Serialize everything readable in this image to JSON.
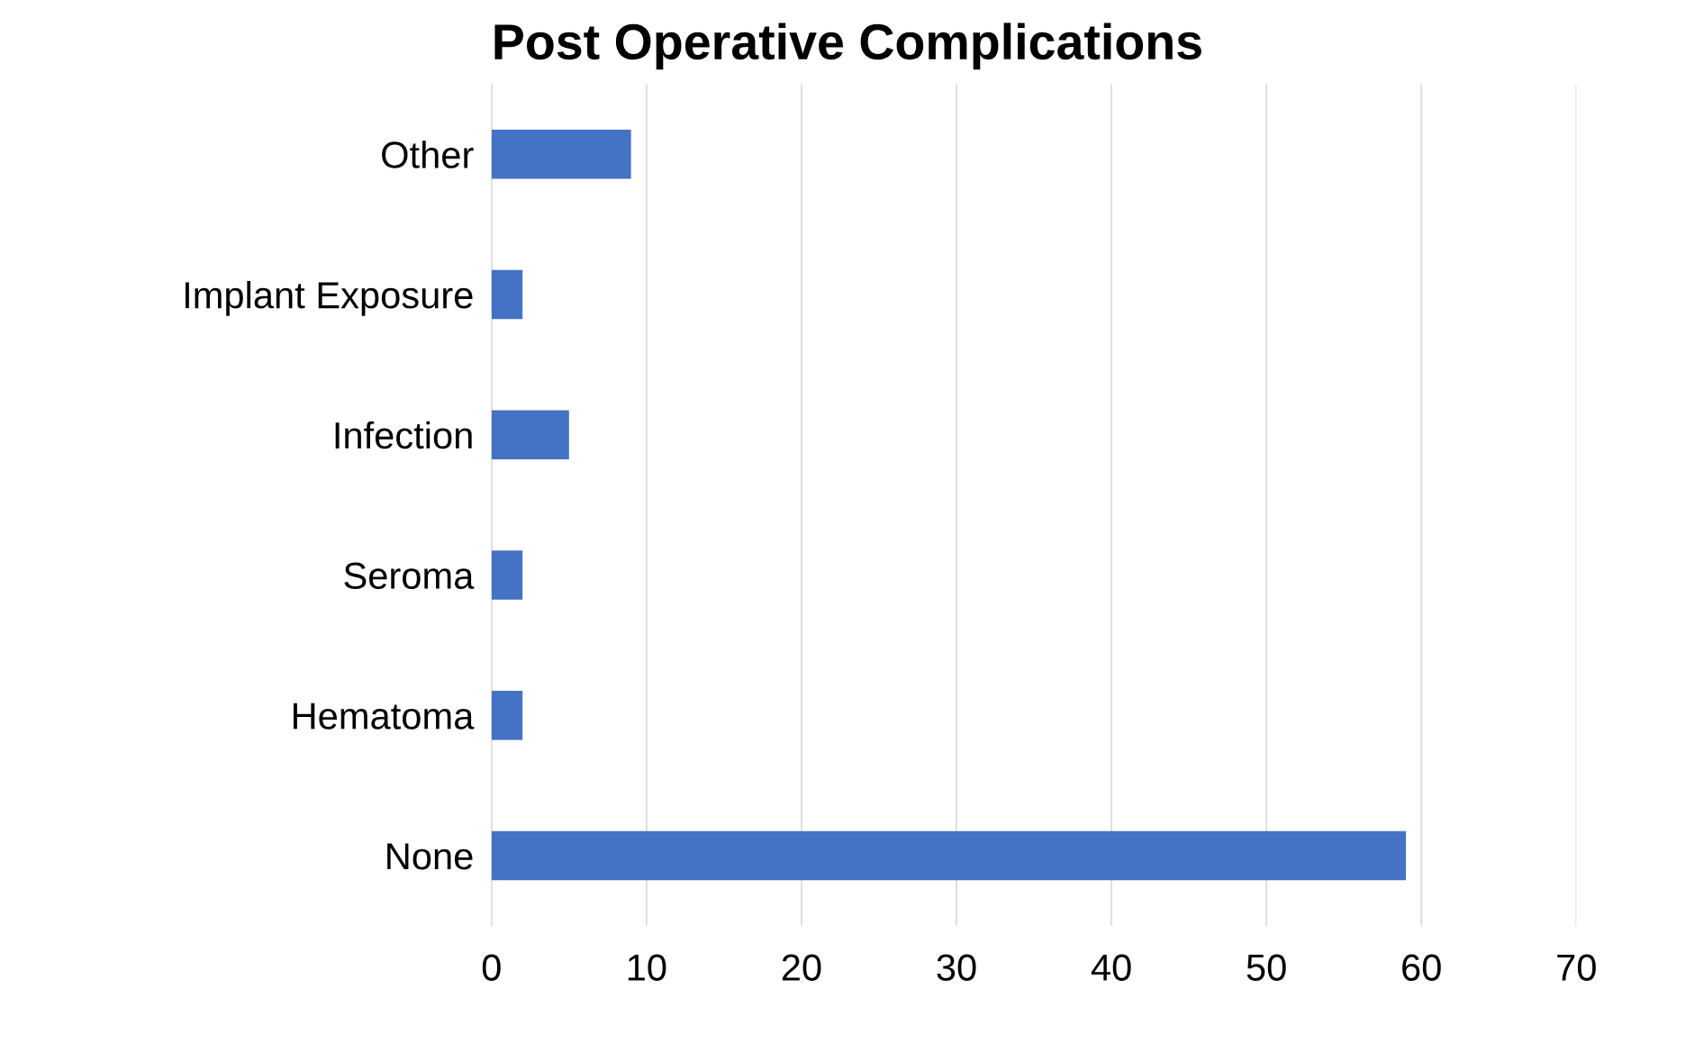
{
  "chart_data": {
    "type": "bar",
    "orientation": "horizontal",
    "title": "Post Operative Complications",
    "categories": [
      "Other",
      "Implant Exposure",
      "Infection",
      "Seroma",
      "Hematoma",
      "None"
    ],
    "values": [
      9,
      2,
      5,
      2,
      2,
      59
    ],
    "color": "#4472c4",
    "xlim": [
      0,
      70
    ],
    "xticks": [
      0,
      10,
      20,
      30,
      40,
      50,
      60,
      70
    ],
    "grid": "x",
    "legend": false
  }
}
